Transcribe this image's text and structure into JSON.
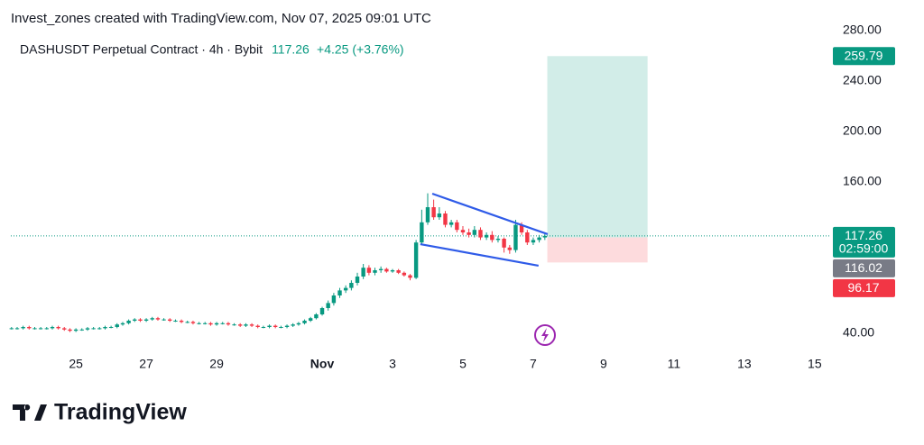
{
  "chart_data": {
    "type": "candlestick",
    "attribution": "Invest_zones created with TradingView.com, Nov 07, 2025 09:01 UTC",
    "title": "DASHUSDT Perpetual Contract · 4h · Bybit",
    "last_price": 117.26,
    "change": "+4.25 (+3.76%)",
    "countdown": "02:59:00",
    "brand": "TradingView",
    "colors": {
      "up": "#089981",
      "down": "#f23645",
      "entry": "#787b86",
      "trendline": "#2f5be8"
    },
    "xlim": [
      23.15,
      46.44
    ],
    "ylim": [
      25,
      300
    ],
    "xticks": [
      25,
      27,
      29,
      {
        "value": 32,
        "label": "Nov"
      },
      {
        "value": 34,
        "label": "3"
      },
      {
        "value": 36,
        "label": "5"
      },
      {
        "value": 38,
        "label": "7"
      },
      {
        "value": 40,
        "label": "9"
      },
      {
        "value": 42,
        "label": "11"
      },
      {
        "value": 44,
        "label": "13"
      },
      {
        "value": 46,
        "label": "15"
      }
    ],
    "yticks": [
      {
        "value": 40,
        "label": "40.00"
      },
      {
        "value": 160,
        "label": "160.00"
      },
      {
        "value": 200,
        "label": "200.00"
      },
      {
        "value": 240,
        "label": "240.00"
      },
      {
        "value": 280,
        "label": "280.00"
      }
    ],
    "x": [
      23.17,
      23.33,
      23.5,
      23.67,
      23.83,
      24,
      24.17,
      24.33,
      24.5,
      24.67,
      24.83,
      25,
      25.17,
      25.33,
      25.5,
      25.67,
      25.83,
      26,
      26.17,
      26.33,
      26.5,
      26.67,
      26.83,
      27,
      27.17,
      27.33,
      27.5,
      27.67,
      27.83,
      28,
      28.17,
      28.33,
      28.5,
      28.67,
      28.83,
      29,
      29.17,
      29.33,
      29.5,
      29.67,
      29.83,
      30,
      30.17,
      30.33,
      30.5,
      30.67,
      30.83,
      31,
      31.17,
      31.33,
      31.5,
      31.67,
      31.83,
      32,
      32.17,
      32.33,
      32.5,
      32.67,
      32.83,
      33,
      33.17,
      33.33,
      33.5,
      33.67,
      33.83,
      34,
      34.17,
      34.33,
      34.5,
      34.67,
      34.83,
      35,
      35.17,
      35.33,
      35.5,
      35.67,
      35.83,
      36,
      36.17,
      36.33,
      36.5,
      36.67,
      36.83,
      37,
      37.17,
      37.33,
      37.5,
      37.67,
      37.83,
      38,
      38.17,
      38.33
    ],
    "open": [
      44,
      44,
      44,
      45,
      44,
      44,
      44,
      44,
      45,
      44,
      43,
      42,
      43,
      43,
      44,
      44,
      44,
      45,
      45,
      47,
      48,
      50,
      51,
      50,
      51,
      52,
      51,
      51,
      50,
      50,
      49,
      49,
      48,
      48,
      48,
      47,
      48,
      48,
      47,
      47,
      46,
      47,
      46,
      45,
      45,
      46,
      45,
      45,
      46,
      47,
      48,
      50,
      52,
      55,
      60,
      64,
      70,
      74,
      76,
      80,
      85,
      92,
      88,
      90,
      91,
      89,
      90,
      88,
      86,
      84,
      112,
      128,
      140,
      132,
      135,
      126,
      128,
      122,
      120,
      118,
      122,
      116,
      118,
      114,
      115,
      108,
      106,
      126,
      120,
      112,
      114,
      116
    ],
    "high": [
      45,
      45,
      46,
      46,
      45,
      45,
      45,
      46,
      46,
      45,
      44,
      44,
      44,
      45,
      45,
      45,
      46,
      46,
      48,
      49,
      51,
      52,
      52,
      52,
      53,
      53,
      52,
      52,
      51,
      51,
      50,
      50,
      49,
      49,
      49,
      49,
      49,
      49,
      48,
      48,
      48,
      48,
      47,
      46,
      47,
      47,
      46,
      47,
      48,
      49,
      51,
      53,
      56,
      61,
      66,
      72,
      76,
      78,
      82,
      88,
      95,
      94,
      92,
      93,
      92,
      91,
      91,
      89,
      87,
      114,
      138,
      151,
      146,
      140,
      137,
      130,
      130,
      125,
      123,
      125,
      124,
      120,
      121,
      117,
      116,
      110,
      130,
      128,
      122,
      116,
      118,
      119
    ],
    "low": [
      43,
      43,
      43,
      43,
      43,
      43,
      43,
      43,
      43,
      42,
      41,
      41,
      42,
      42,
      43,
      43,
      43,
      44,
      44,
      46,
      47,
      49,
      49,
      49,
      50,
      50,
      50,
      49,
      49,
      48,
      48,
      47,
      47,
      47,
      46,
      46,
      47,
      46,
      46,
      45,
      45,
      45,
      44,
      44,
      44,
      44,
      44,
      44,
      45,
      46,
      47,
      49,
      51,
      54,
      58,
      62,
      68,
      72,
      74,
      78,
      83,
      86,
      86,
      88,
      88,
      88,
      87,
      85,
      82,
      83,
      110,
      126,
      130,
      130,
      124,
      124,
      120,
      118,
      116,
      116,
      114,
      114,
      112,
      112,
      104,
      103,
      104,
      118,
      110,
      110,
      112,
      114
    ],
    "close": [
      44,
      44,
      45,
      44,
      44,
      44,
      44,
      45,
      44,
      43,
      42,
      43,
      43,
      44,
      44,
      44,
      45,
      45,
      47,
      48,
      50,
      51,
      50,
      51,
      52,
      51,
      51,
      50,
      50,
      49,
      49,
      48,
      48,
      48,
      47,
      48,
      48,
      47,
      47,
      46,
      47,
      46,
      45,
      45,
      46,
      45,
      45,
      46,
      47,
      48,
      50,
      52,
      55,
      60,
      64,
      70,
      74,
      76,
      80,
      85,
      92,
      88,
      90,
      91,
      89,
      90,
      88,
      86,
      84,
      112,
      128,
      140,
      132,
      135,
      126,
      128,
      122,
      120,
      118,
      122,
      116,
      118,
      114,
      115,
      108,
      106,
      126,
      120,
      112,
      114,
      116,
      117.26
    ],
    "trendlines": [
      {
        "x": [
          35.13,
          38.41
        ],
        "y": [
          150.7,
          118.6
        ]
      },
      {
        "x": [
          34.79,
          38.15
        ],
        "y": [
          110.7,
          93.6
        ]
      }
    ],
    "position": {
      "x_start": 38.4,
      "x_end": 41.25,
      "entry": 116.02,
      "target": 259.79,
      "stop": 96.17
    }
  }
}
